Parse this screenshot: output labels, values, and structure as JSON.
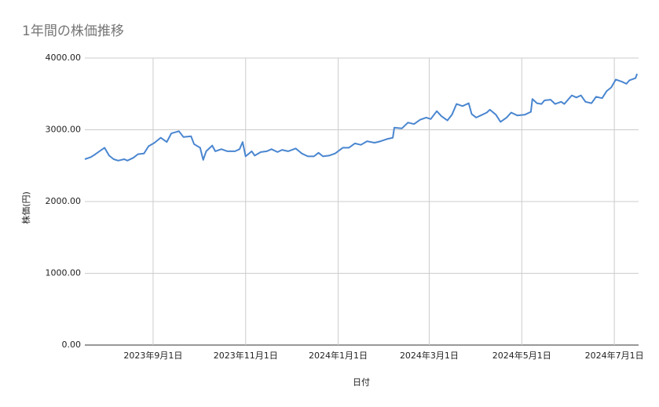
{
  "chart_data": {
    "type": "line",
    "title": "1年間の株価推移",
    "x_label": "日付",
    "y_label": "株価(円)",
    "x": [
      "2023-07-18",
      "2023-07-22",
      "2023-07-25",
      "2023-07-29",
      "2023-07-31",
      "2023-08-03",
      "2023-08-06",
      "2023-08-09",
      "2023-08-13",
      "2023-08-15",
      "2023-08-19",
      "2023-08-22",
      "2023-08-26",
      "2023-08-29",
      "2023-09-02",
      "2023-09-06",
      "2023-09-10",
      "2023-09-13",
      "2023-09-18",
      "2023-09-21",
      "2023-09-26",
      "2023-09-28",
      "2023-10-02",
      "2023-10-04",
      "2023-10-06",
      "2023-10-10",
      "2023-10-12",
      "2023-10-16",
      "2023-10-20",
      "2023-10-25",
      "2023-10-28",
      "2023-10-30",
      "2023-11-01",
      "2023-11-05",
      "2023-11-07",
      "2023-11-11",
      "2023-11-15",
      "2023-11-18",
      "2023-11-22",
      "2023-11-25",
      "2023-11-29",
      "2023-12-04",
      "2023-12-08",
      "2023-12-12",
      "2023-12-16",
      "2023-12-19",
      "2023-12-22",
      "2023-12-26",
      "2023-12-30",
      "2024-01-04",
      "2024-01-08",
      "2024-01-12",
      "2024-01-16",
      "2024-01-20",
      "2024-01-25",
      "2024-01-29",
      "2024-02-02",
      "2024-02-06",
      "2024-02-07",
      "2024-02-12",
      "2024-02-16",
      "2024-02-20",
      "2024-02-24",
      "2024-02-28",
      "2024-03-02",
      "2024-03-06",
      "2024-03-09",
      "2024-03-13",
      "2024-03-16",
      "2024-03-19",
      "2024-03-23",
      "2024-03-27",
      "2024-03-29",
      "2024-04-01",
      "2024-04-04",
      "2024-04-08",
      "2024-04-10",
      "2024-04-14",
      "2024-04-17",
      "2024-04-21",
      "2024-04-24",
      "2024-04-28",
      "2024-05-03",
      "2024-05-07",
      "2024-05-08",
      "2024-05-11",
      "2024-05-14",
      "2024-05-16",
      "2024-05-20",
      "2024-05-23",
      "2024-05-27",
      "2024-05-29",
      "2024-06-03",
      "2024-06-06",
      "2024-06-09",
      "2024-06-12",
      "2024-06-16",
      "2024-06-19",
      "2024-06-23",
      "2024-06-26",
      "2024-06-29",
      "2024-07-02",
      "2024-07-06",
      "2024-07-09",
      "2024-07-11",
      "2024-07-15",
      "2024-07-16"
    ],
    "series": [
      {
        "color": "#4a86d0",
        "values": [
          2590,
          2620,
          2660,
          2720,
          2750,
          2640,
          2590,
          2570,
          2590,
          2570,
          2610,
          2660,
          2670,
          2770,
          2820,
          2890,
          2830,
          2950,
          2980,
          2900,
          2910,
          2800,
          2750,
          2580,
          2700,
          2780,
          2700,
          2730,
          2700,
          2700,
          2730,
          2830,
          2630,
          2700,
          2640,
          2690,
          2700,
          2730,
          2690,
          2720,
          2700,
          2740,
          2670,
          2630,
          2630,
          2680,
          2630,
          2640,
          2670,
          2750,
          2750,
          2810,
          2790,
          2840,
          2820,
          2840,
          2870,
          2890,
          3030,
          3020,
          3100,
          3080,
          3140,
          3170,
          3150,
          3260,
          3190,
          3130,
          3210,
          3360,
          3330,
          3370,
          3220,
          3170,
          3200,
          3240,
          3280,
          3210,
          3110,
          3170,
          3240,
          3200,
          3210,
          3250,
          3430,
          3370,
          3360,
          3410,
          3420,
          3360,
          3390,
          3360,
          3480,
          3450,
          3480,
          3390,
          3370,
          3460,
          3440,
          3540,
          3590,
          3700,
          3670,
          3640,
          3690,
          3720,
          3780
        ]
      }
    ],
    "xlim": [
      "2023-07-18",
      "2024-07-17"
    ],
    "xticks": [
      {
        "value": "2023-09-01",
        "label": "2023年9月1日"
      },
      {
        "value": "2023-11-01",
        "label": "2023年11月1日"
      },
      {
        "value": "2024-01-01",
        "label": "2024年1月1日"
      },
      {
        "value": "2024-03-01",
        "label": "2024年3月1日"
      },
      {
        "value": "2024-05-01",
        "label": "2024年5月1日"
      },
      {
        "value": "2024-07-01",
        "label": "2024年7月1日"
      }
    ],
    "ylim": [
      0,
      4000
    ],
    "yticks": [
      {
        "value": 0,
        "label": "0.00"
      },
      {
        "value": 1000,
        "label": "1000.00"
      },
      {
        "value": 2000,
        "label": "2000.00"
      },
      {
        "value": 3000,
        "label": "3000.00"
      },
      {
        "value": 4000,
        "label": "4000.00"
      }
    ],
    "grid": true
  }
}
